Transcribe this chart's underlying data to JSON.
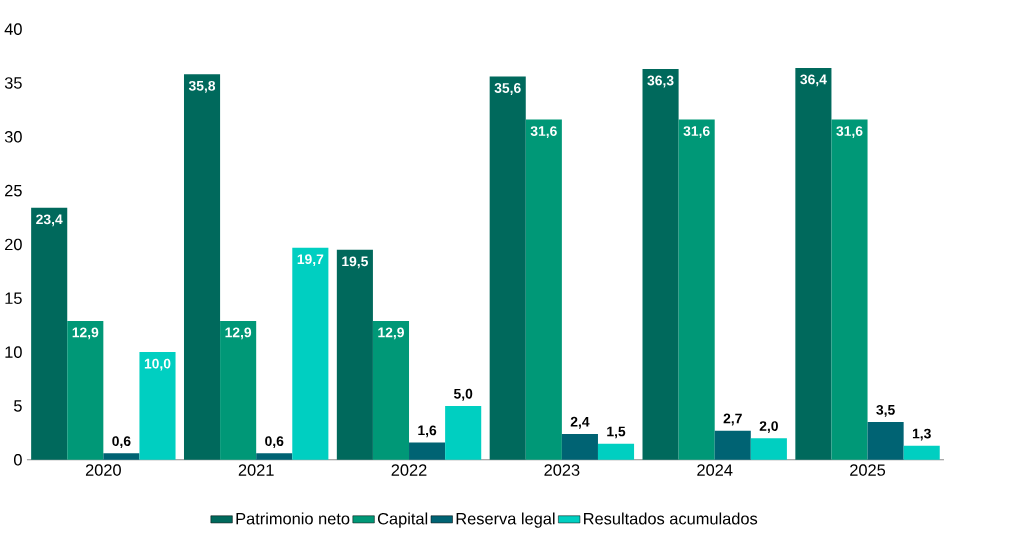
{
  "chart_data": {
    "type": "bar",
    "categories": [
      "2020",
      "2021",
      "2022",
      "2023",
      "2024",
      "2025"
    ],
    "series": [
      {
        "name": "Patrimonio neto",
        "color": "#00695c",
        "values": [
          23.4,
          35.8,
          19.5,
          35.6,
          36.3,
          36.4
        ],
        "value_labels": [
          "23,4",
          "35,8",
          "19,5",
          "35,6",
          "36,3",
          "36,4"
        ]
      },
      {
        "name": "Capital",
        "color": "#009877",
        "values": [
          12.9,
          12.9,
          12.9,
          31.6,
          31.6,
          31.6
        ],
        "value_labels": [
          "12,9",
          "12,9",
          "12,9",
          "31,6",
          "31,6",
          "31,6"
        ]
      },
      {
        "name": "Reserva legal",
        "color": "#006373",
        "values": [
          0.6,
          0.6,
          1.6,
          2.4,
          2.7,
          3.5
        ],
        "value_labels": [
          "0,6",
          "0,6",
          "1,6",
          "2,4",
          "2,7",
          "3,5"
        ]
      },
      {
        "name": "Resultados acumulados",
        "color": "#00cfc1",
        "values": [
          10.0,
          19.7,
          5.0,
          1.5,
          2.0,
          1.3
        ],
        "value_labels": [
          "10,0",
          "19,7",
          "5,0",
          "1,5",
          "2,0",
          "1,3"
        ]
      }
    ],
    "ylim": [
      0,
      40
    ],
    "yticks": [
      0,
      5,
      10,
      15,
      20,
      25,
      30,
      35,
      40
    ],
    "grid": false,
    "legend": "bottom"
  }
}
